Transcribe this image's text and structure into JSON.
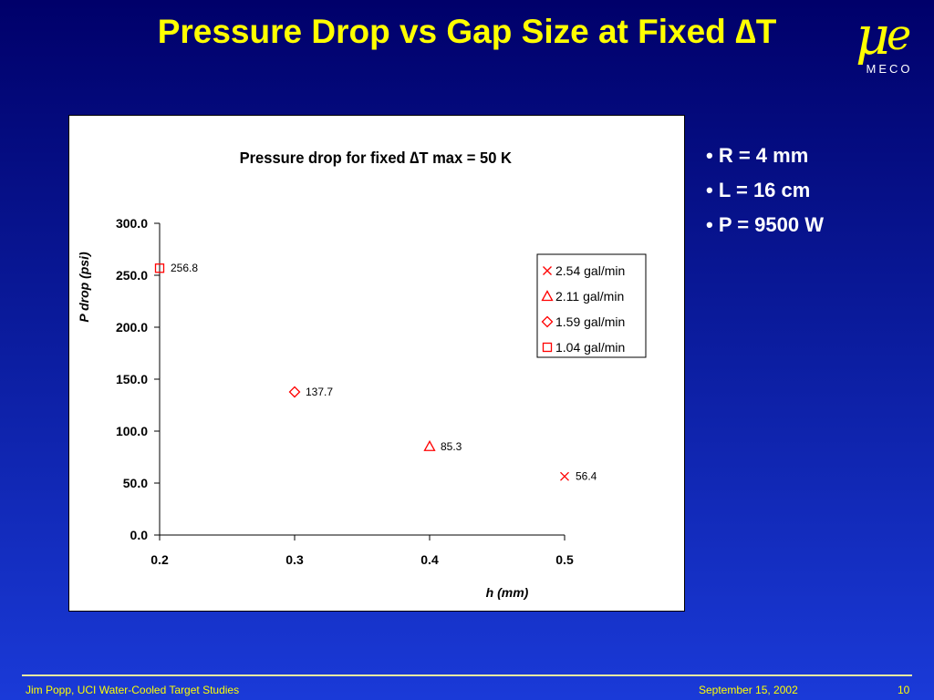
{
  "slide": {
    "title": "Pressure Drop vs Gap Size at Fixed ∆T",
    "logo_text": "MECO",
    "bullets": [
      "R = 4 mm",
      "L = 16 cm",
      "P = 9500 W"
    ],
    "footer_left": "Jim Popp, UCI  Water-Cooled Target Studies",
    "footer_date": "September 15, 2002",
    "page_number": "10"
  },
  "colors": {
    "title": "#ffff00",
    "marker": "#ff0000",
    "text": "#ffffff"
  },
  "chart_data": {
    "type": "scatter",
    "title": "Pressure drop for fixed ∆T max = 50 K",
    "xlabel": "h (mm)",
    "ylabel": "P drop (psi)",
    "xlim": [
      0.2,
      0.5
    ],
    "ylim": [
      0,
      300
    ],
    "x_ticks": [
      "0.2",
      "0.3",
      "0.4",
      "0.5"
    ],
    "y_ticks": [
      "0.0",
      "50.0",
      "100.0",
      "150.0",
      "200.0",
      "250.0",
      "300.0"
    ],
    "grid": false,
    "legend_position": "right",
    "series": [
      {
        "name": "2.54 gal/min",
        "marker": "x",
        "points": [
          {
            "x": 0.5,
            "y": 56.4,
            "label": "56.4"
          }
        ]
      },
      {
        "name": "2.11 gal/min",
        "marker": "triangle",
        "points": [
          {
            "x": 0.4,
            "y": 85.3,
            "label": "85.3"
          }
        ]
      },
      {
        "name": "1.59 gal/min",
        "marker": "diamond",
        "points": [
          {
            "x": 0.3,
            "y": 137.7,
            "label": "137.7"
          }
        ]
      },
      {
        "name": "1.04 gal/min",
        "marker": "square",
        "points": [
          {
            "x": 0.2,
            "y": 256.8,
            "label": "256.8"
          }
        ]
      }
    ]
  }
}
